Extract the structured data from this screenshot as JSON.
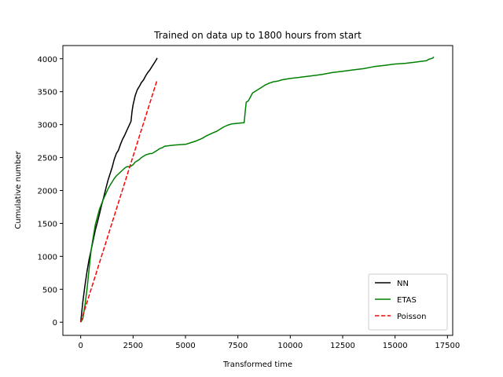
{
  "chart_data": {
    "type": "line",
    "title": "Trained on data up to 1800 hours from start",
    "xlabel": "Transformed time",
    "ylabel": "Cumulative number",
    "xlim": [
      -850,
      17750
    ],
    "ylim": [
      -200,
      4200
    ],
    "x_ticks": [
      0,
      2500,
      5000,
      7500,
      10000,
      12500,
      15000,
      17500
    ],
    "y_ticks": [
      0,
      500,
      1000,
      1500,
      2000,
      2500,
      3000,
      3500,
      4000
    ],
    "legend_position": "lower right",
    "grid": false,
    "series": [
      {
        "name": "NN",
        "color": "#000000",
        "dash": "solid",
        "x": [
          0,
          50,
          100,
          200,
          300,
          400,
          500,
          600,
          700,
          800,
          900,
          1000,
          1100,
          1200,
          1300,
          1400,
          1500,
          1600,
          1700,
          1800,
          1900,
          2000,
          2100,
          2200,
          2300,
          2400,
          2450,
          2500,
          2550,
          2600,
          2700,
          2800,
          2900,
          3000,
          3100,
          3200,
          3300,
          3400,
          3500,
          3600,
          3650
        ],
        "y": [
          0,
          150,
          300,
          550,
          770,
          950,
          1100,
          1250,
          1400,
          1520,
          1650,
          1780,
          1900,
          2030,
          2150,
          2250,
          2350,
          2470,
          2560,
          2610,
          2700,
          2780,
          2840,
          2910,
          2980,
          3050,
          3200,
          3300,
          3370,
          3440,
          3530,
          3580,
          3640,
          3680,
          3740,
          3790,
          3830,
          3880,
          3930,
          3980,
          4010
        ]
      },
      {
        "name": "ETAS",
        "color": "#008000",
        "dash": "solid",
        "x": [
          0,
          100,
          200,
          300,
          400,
          500,
          600,
          700,
          800,
          900,
          1000,
          1100,
          1200,
          1300,
          1400,
          1500,
          1600,
          1700,
          1800,
          1900,
          2000,
          2100,
          2200,
          2300,
          2400,
          2500,
          2600,
          2700,
          2800,
          2900,
          3000,
          3100,
          3200,
          3300,
          3400,
          3500,
          3600,
          3700,
          3800,
          3900,
          4000,
          4200,
          4500,
          5000,
          5200,
          5500,
          5800,
          6000,
          6200,
          6500,
          6800,
          7000,
          7200,
          7500,
          7800,
          7850,
          7900,
          8000,
          8100,
          8200,
          8300,
          8400,
          8600,
          8800,
          9000,
          9200,
          9400,
          9600,
          9800,
          10000,
          10500,
          11000,
          11500,
          12000,
          12500,
          13000,
          13500,
          14000,
          14500,
          15000,
          15500,
          16000,
          16500,
          16600,
          16700,
          16800,
          16850
        ],
        "y": [
          0,
          50,
          250,
          500,
          800,
          1100,
          1300,
          1480,
          1600,
          1720,
          1800,
          1880,
          1950,
          2020,
          2080,
          2130,
          2180,
          2220,
          2250,
          2280,
          2310,
          2340,
          2360,
          2360,
          2370,
          2390,
          2430,
          2450,
          2470,
          2500,
          2520,
          2540,
          2550,
          2560,
          2560,
          2580,
          2600,
          2620,
          2640,
          2650,
          2670,
          2680,
          2690,
          2700,
          2720,
          2750,
          2790,
          2830,
          2860,
          2900,
          2960,
          2990,
          3010,
          3020,
          3030,
          3200,
          3340,
          3360,
          3420,
          3480,
          3500,
          3520,
          3560,
          3600,
          3630,
          3650,
          3660,
          3680,
          3690,
          3700,
          3720,
          3740,
          3760,
          3790,
          3810,
          3830,
          3850,
          3880,
          3900,
          3920,
          3930,
          3950,
          3970,
          3990,
          4000,
          4010,
          4030
        ]
      },
      {
        "name": "Poisson",
        "color": "#ff0000",
        "dash": "dashed",
        "x": [
          0,
          3650
        ],
        "y": [
          0,
          3680
        ]
      }
    ]
  }
}
